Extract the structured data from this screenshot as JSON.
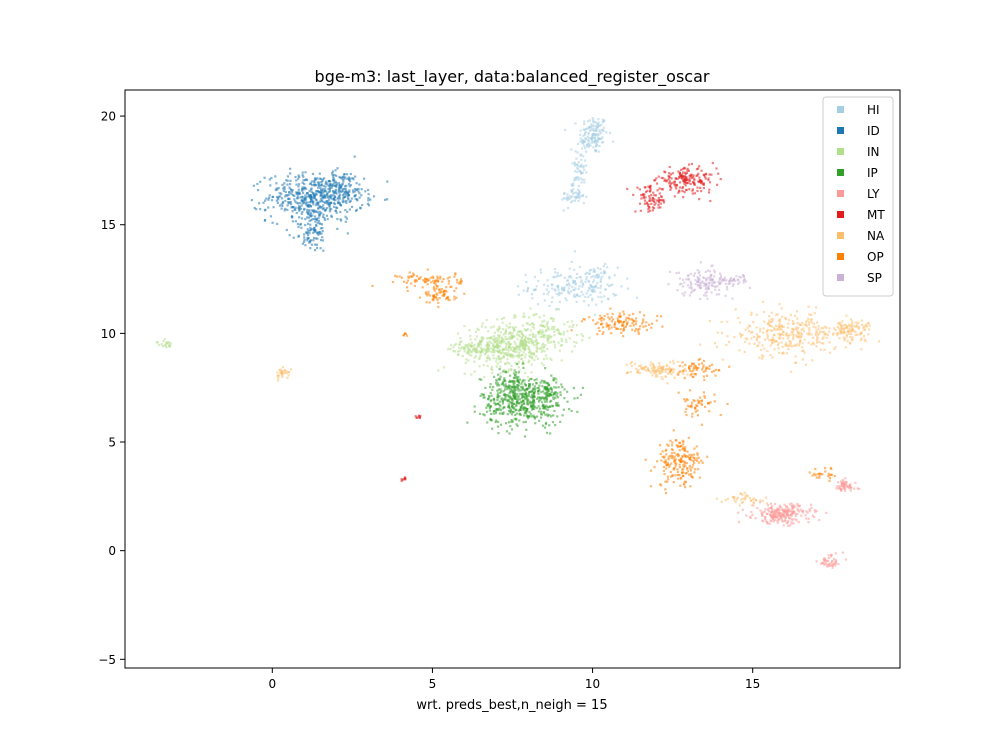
{
  "chart_data": {
    "type": "scatter",
    "title": "bge-m3: last_layer, data:balanced_register_oscar",
    "xlabel": "wrt. preds_best,n_neigh = 15",
    "ylabel": "",
    "xlim": [
      -4.6,
      19.6
    ],
    "ylim": [
      -5.4,
      21.2
    ],
    "x_ticks": [
      0,
      5,
      10,
      15
    ],
    "x_tick_labels": [
      "0",
      "5",
      "10",
      "15"
    ],
    "y_ticks": [
      -5,
      0,
      5,
      10,
      15,
      20
    ],
    "y_tick_labels": [
      "−5",
      "0",
      "5",
      "10",
      "15",
      "20"
    ],
    "grid": false,
    "legend_position": "top-right",
    "series": [
      {
        "name": "HI",
        "color": "#a6cee3",
        "clusters": [
          {
            "x": 10.0,
            "y": 19.2,
            "sx": 0.22,
            "sy": 0.45,
            "n": 130
          },
          {
            "x": 9.6,
            "y": 17.6,
            "sx": 0.12,
            "sy": 0.9,
            "n": 70
          },
          {
            "x": 9.3,
            "y": 16.4,
            "sx": 0.15,
            "sy": 0.3,
            "n": 40
          },
          {
            "x": 9.4,
            "y": 12.2,
            "sx": 0.7,
            "sy": 0.45,
            "n": 190
          },
          {
            "x": 10.1,
            "y": 12.6,
            "sx": 0.15,
            "sy": 0.25,
            "n": 25
          }
        ]
      },
      {
        "name": "ID",
        "color": "#1f78b4",
        "clusters": [
          {
            "x": 1.3,
            "y": 16.3,
            "sx": 0.75,
            "sy": 0.55,
            "n": 520
          },
          {
            "x": 1.2,
            "y": 14.7,
            "sx": 0.25,
            "sy": 0.45,
            "n": 90
          },
          {
            "x": 2.2,
            "y": 16.8,
            "sx": 0.3,
            "sy": 0.35,
            "n": 80
          }
        ]
      },
      {
        "name": "IN",
        "color": "#b2df8a",
        "clusters": [
          {
            "x": 7.4,
            "y": 9.5,
            "sx": 0.7,
            "sy": 0.55,
            "n": 480
          },
          {
            "x": 6.2,
            "y": 9.3,
            "sx": 0.4,
            "sy": 0.15,
            "n": 60
          },
          {
            "x": 8.6,
            "y": 10.2,
            "sx": 0.5,
            "sy": 0.4,
            "n": 90
          },
          {
            "x": -3.4,
            "y": 9.55,
            "sx": 0.12,
            "sy": 0.08,
            "n": 20
          }
        ]
      },
      {
        "name": "IP",
        "color": "#33a02c",
        "clusters": [
          {
            "x": 7.8,
            "y": 6.9,
            "sx": 0.65,
            "sy": 0.55,
            "n": 480
          },
          {
            "x": 7.4,
            "y": 7.8,
            "sx": 0.3,
            "sy": 0.3,
            "n": 80
          },
          {
            "x": 8.6,
            "y": 7.4,
            "sx": 0.25,
            "sy": 0.35,
            "n": 60
          }
        ]
      },
      {
        "name": "LY",
        "color": "#fb9a99",
        "clusters": [
          {
            "x": 15.9,
            "y": 1.75,
            "sx": 0.45,
            "sy": 0.22,
            "n": 230
          },
          {
            "x": 17.8,
            "y": 3.0,
            "sx": 0.2,
            "sy": 0.15,
            "n": 55
          },
          {
            "x": 17.4,
            "y": -0.45,
            "sx": 0.2,
            "sy": 0.18,
            "n": 45
          }
        ]
      },
      {
        "name": "MT",
        "color": "#e31a1c",
        "clusters": [
          {
            "x": 12.9,
            "y": 17.1,
            "sx": 0.45,
            "sy": 0.28,
            "n": 170
          },
          {
            "x": 11.8,
            "y": 16.2,
            "sx": 0.25,
            "sy": 0.3,
            "n": 80
          },
          {
            "x": 4.55,
            "y": 6.2,
            "sx": 0.04,
            "sy": 0.04,
            "n": 8
          },
          {
            "x": 4.05,
            "y": 3.35,
            "sx": 0.04,
            "sy": 0.04,
            "n": 8
          }
        ]
      },
      {
        "name": "NA",
        "color": "#fdbf6f",
        "clusters": [
          {
            "x": 16.0,
            "y": 10.0,
            "sx": 0.8,
            "sy": 0.5,
            "n": 300
          },
          {
            "x": 18.0,
            "y": 10.2,
            "sx": 0.35,
            "sy": 0.25,
            "n": 110
          },
          {
            "x": 12.0,
            "y": 8.4,
            "sx": 0.45,
            "sy": 0.2,
            "n": 110
          },
          {
            "x": 0.3,
            "y": 8.2,
            "sx": 0.12,
            "sy": 0.12,
            "n": 30
          },
          {
            "x": 14.7,
            "y": 2.4,
            "sx": 0.35,
            "sy": 0.15,
            "n": 40
          }
        ]
      },
      {
        "name": "OP",
        "color": "#ff7f00",
        "clusters": [
          {
            "x": 4.9,
            "y": 12.5,
            "sx": 0.5,
            "sy": 0.18,
            "n": 80
          },
          {
            "x": 5.2,
            "y": 11.8,
            "sx": 0.25,
            "sy": 0.2,
            "n": 60
          },
          {
            "x": 10.9,
            "y": 10.5,
            "sx": 0.6,
            "sy": 0.25,
            "n": 120
          },
          {
            "x": 13.2,
            "y": 8.4,
            "sx": 0.35,
            "sy": 0.2,
            "n": 60
          },
          {
            "x": 13.2,
            "y": 6.7,
            "sx": 0.3,
            "sy": 0.3,
            "n": 50
          },
          {
            "x": 12.7,
            "y": 4.1,
            "sx": 0.35,
            "sy": 0.55,
            "n": 190
          },
          {
            "x": 17.2,
            "y": 3.6,
            "sx": 0.3,
            "sy": 0.15,
            "n": 25
          },
          {
            "x": 4.1,
            "y": 10.0,
            "sx": 0.04,
            "sy": 0.04,
            "n": 6
          }
        ]
      },
      {
        "name": "SP",
        "color": "#cab2d6",
        "clusters": [
          {
            "x": 13.4,
            "y": 12.4,
            "sx": 0.4,
            "sy": 0.3,
            "n": 130
          },
          {
            "x": 14.4,
            "y": 12.5,
            "sx": 0.3,
            "sy": 0.12,
            "n": 40
          }
        ]
      }
    ]
  }
}
